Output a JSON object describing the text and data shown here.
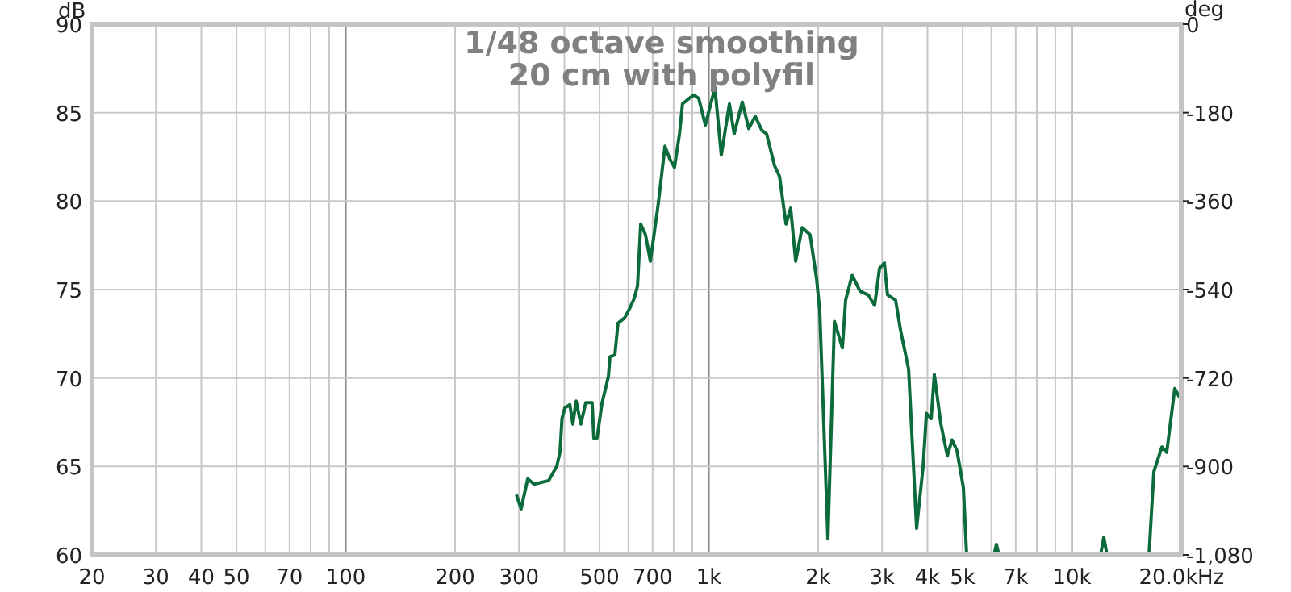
{
  "chart_data": {
    "type": "line",
    "title": "1/48 octave smoothing",
    "subtitle": "20 cm with polyfil",
    "ylabel": "dB",
    "y2label": "deg",
    "log": "x",
    "grid": true,
    "xlim": [
      20,
      20000
    ],
    "xticks": [
      20,
      30,
      40,
      50,
      {
        "value": 60,
        "label": null
      },
      70,
      {
        "value": 80,
        "label": null
      },
      {
        "value": 90,
        "label": null
      },
      100,
      200,
      300,
      {
        "value": 400,
        "label": null
      },
      500,
      {
        "value": 600,
        "label": null
      },
      700,
      {
        "value": 800,
        "label": null
      },
      {
        "value": 900,
        "label": null
      },
      {
        "value": 1000,
        "label": "1k"
      },
      {
        "value": 2000,
        "label": "2k"
      },
      {
        "value": 3000,
        "label": "3k"
      },
      {
        "value": 4000,
        "label": "4k"
      },
      {
        "value": 5000,
        "label": "5k"
      },
      {
        "value": 6000,
        "label": null
      },
      {
        "value": 7000,
        "label": "7k"
      },
      {
        "value": 8000,
        "label": null
      },
      {
        "value": 9000,
        "label": null
      },
      {
        "value": 10000,
        "label": "10k"
      },
      {
        "value": 20000,
        "label": "20.0k"
      }
    ],
    "xlabel": "Hz",
    "ylim": [
      60,
      90
    ],
    "yticks": [
      60,
      65,
      70,
      75,
      80,
      85,
      90
    ],
    "y2lim": [
      -1080,
      0
    ],
    "y2ticks": [
      {
        "value": -1080,
        "label": "-1,080"
      },
      -900,
      -720,
      -540,
      -360,
      -180,
      0
    ],
    "series": [
      {
        "color": "#0b6b3a",
        "x": [
          295,
          304,
          317,
          330,
          362,
          381,
          389,
          394,
          401,
          414,
          422,
          431,
          444,
          458,
          477,
          482,
          492,
          508,
          529,
          534,
          551,
          562,
          586,
          604,
          623,
          636,
          649,
          669,
          690,
          726,
          757,
          780,
          804,
          830,
          846,
          882,
          910,
          938,
          978,
          1039,
          1082,
          1139,
          1174,
          1236,
          1288,
          1342,
          1399,
          1442,
          1517,
          1565,
          1631,
          1680,
          1734,
          1807,
          1900,
          1980,
          2020,
          2127,
          2217,
          2332,
          2380,
          2480,
          2610,
          2746,
          2861,
          2951,
          3043,
          3105,
          3268,
          3372,
          3549,
          3734,
          3891,
          3973,
          4095,
          4178,
          4355,
          4537,
          4675,
          4822,
          5024,
          5128,
          5600,
          6100,
          6196,
          6292,
          8000,
          11990,
          12240,
          12490,
          14000,
          16300,
          16810,
          17690,
          18240,
          19190,
          19800
        ],
        "values": [
          63.4,
          62.6,
          64.3,
          64.0,
          64.2,
          65.0,
          65.8,
          67.7,
          68.3,
          68.5,
          67.4,
          68.7,
          67.4,
          68.6,
          68.6,
          66.6,
          66.6,
          68.6,
          70.1,
          71.2,
          71.3,
          73.1,
          73.4,
          73.9,
          74.5,
          75.2,
          78.7,
          78.1,
          76.6,
          79.9,
          83.1,
          82.4,
          81.9,
          83.8,
          85.5,
          85.8,
          86.0,
          85.8,
          84.3,
          86.4,
          82.6,
          85.5,
          83.8,
          85.6,
          84.1,
          84.8,
          84.0,
          83.8,
          82.0,
          81.4,
          78.7,
          79.6,
          76.6,
          78.5,
          78.1,
          75.6,
          73.8,
          60.9,
          73.2,
          71.7,
          74.4,
          75.8,
          74.9,
          74.7,
          74.1,
          76.2,
          76.5,
          74.7,
          74.4,
          72.7,
          70.5,
          61.5,
          65.0,
          68.0,
          67.7,
          70.2,
          67.4,
          65.6,
          66.5,
          65.9,
          63.8,
          60.0,
          null,
          60.0,
          60.6,
          60.0,
          null,
          60.0,
          61.0,
          60.0,
          null,
          60.0,
          64.7,
          66.1,
          65.8,
          69.4,
          68.9
        ]
      }
    ]
  }
}
